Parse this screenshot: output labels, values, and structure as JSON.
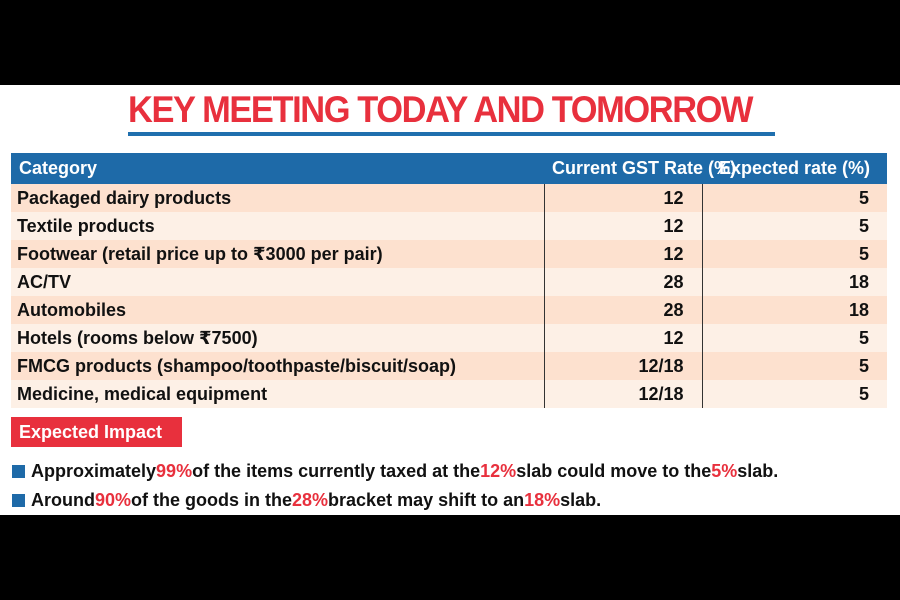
{
  "title": {
    "text": "KEY MEETING TODAY AND TOMORROW",
    "color": "#e8303d",
    "underline_color": "#1f6fae"
  },
  "table": {
    "header_color": "#1e6aa8",
    "row_colors": [
      "#fde1cf",
      "#fdf0e6"
    ],
    "columns": [
      "Category",
      "Current GST Rate (%)",
      "Expected rate (%)"
    ],
    "rows": [
      {
        "category": "Packaged dairy products",
        "current": "12",
        "expected": "5"
      },
      {
        "category": "Textile products",
        "current": "12",
        "expected": "5"
      },
      {
        "category": "Footwear (retail price up to ₹3000 per pair)",
        "current": "12",
        "expected": "5"
      },
      {
        "category": "AC/TV",
        "current": "28",
        "expected": "18"
      },
      {
        "category": "Automobiles",
        "current": "28",
        "expected": "18"
      },
      {
        "category": "Hotels (rooms below ₹7500)",
        "current": "12",
        "expected": "5"
      },
      {
        "category": "FMCG products (shampoo/toothpaste/biscuit/soap)",
        "current": "12/18",
        "expected": "5"
      },
      {
        "category": "Medicine, medical equipment",
        "current": "12/18",
        "expected": "5"
      }
    ]
  },
  "impact": {
    "label": "Expected Impact",
    "badge_color": "#e8303d",
    "highlight_color": "#e8303d",
    "bullet_icon": "blue-square-icon",
    "bullets": [
      {
        "t1": "Approximately ",
        "h1": "99%",
        "t2": " of the items currently taxed at the ",
        "h2": "12%",
        "t3": " slab could move to the ",
        "h3": "5%",
        "t4": " slab."
      },
      {
        "t1": "Around ",
        "h1": "90%",
        "t2": " of the goods in the ",
        "h2": "28%",
        "t3": " bracket may shift to an ",
        "h3": "18%",
        "t4": " slab."
      }
    ]
  }
}
